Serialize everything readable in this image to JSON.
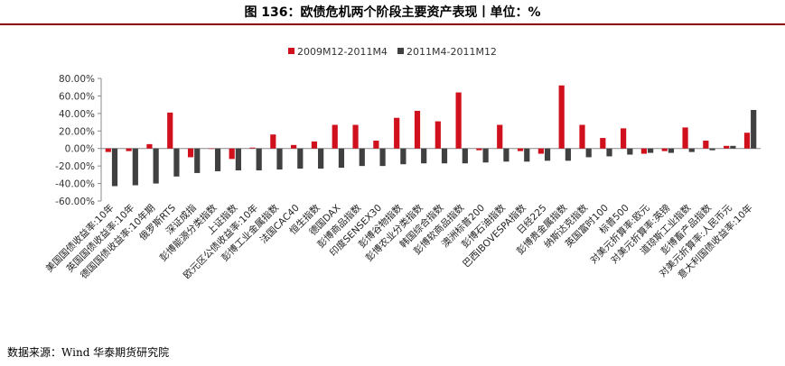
{
  "title": "图 136：欧债危机两个阶段主要资产表现丨单位：%",
  "source": "数据来源：Wind 华泰期货研究院",
  "colors": {
    "series1": "#d0101c",
    "series2": "#404040",
    "rule": "#8a0000"
  },
  "chart_data": {
    "type": "bar",
    "legend_position": "top",
    "grid": false,
    "ylim": [
      -60,
      80
    ],
    "yticks": [
      -60,
      -40,
      -20,
      0,
      20,
      40,
      60,
      80
    ],
    "ytick_labels": [
      "-60.00%",
      "-40.00%",
      "-20.00%",
      "0.00%",
      "20.00%",
      "40.00%",
      "60.00%",
      "80.00%"
    ],
    "categories": [
      "美国国债收益率:10年",
      "英国国债收益率:10年",
      "德国国债收益率:10年期",
      "俄罗斯RTS",
      "深证成指",
      "彭博能源分类指数",
      "上证指数",
      "欧元区公债收益率:10年",
      "彭博工业金属指数",
      "法国CAC40",
      "恒生指数",
      "德国DAX",
      "彭博商品指数",
      "印度SENSEX30",
      "彭博谷物指数",
      "彭博农业分类指数",
      "韩国综合指数",
      "彭博软商品指数",
      "澳洲标普200",
      "彭博石油指数",
      "巴西IBOVESPA指数",
      "日经225",
      "彭博贵金属指数",
      "纳斯达克指数",
      "英国富时100",
      "标普500",
      "对美元折算率:欧元",
      "对美元折算率:英镑",
      "道琼斯工业指数",
      "彭博畜产品指数",
      "对美元折算率:人民币元",
      "意大利国债收益率:10年"
    ],
    "series": [
      {
        "name": "2009M12-2011M4",
        "values": [
          -4,
          -3,
          5,
          41,
          -10,
          0,
          -12,
          1,
          16,
          4,
          8,
          27,
          27,
          9,
          35,
          43,
          31,
          64,
          -2,
          27,
          -3,
          -6,
          72,
          27,
          12,
          23,
          -6,
          -3,
          24,
          9,
          3,
          18
        ]
      },
      {
        "name": "2011M4-2011M12",
        "values": [
          -43,
          -42,
          -40,
          -32,
          -28,
          -26,
          -25,
          -25,
          -24,
          -23,
          -23,
          -22,
          -20,
          -20,
          -18,
          -17,
          -17,
          -17,
          -16,
          -15,
          -15,
          -14,
          -14,
          -10,
          -9,
          -7,
          -5,
          -5,
          -4,
          -2,
          3,
          44
        ]
      }
    ]
  }
}
